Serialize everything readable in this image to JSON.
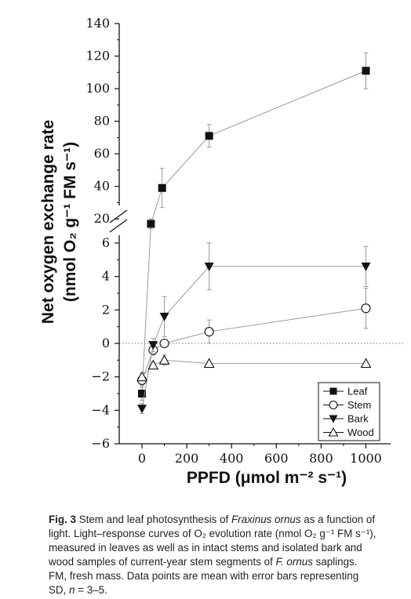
{
  "chart_data": {
    "type": "line",
    "xlabel": "PPFD (μmol m⁻² s⁻¹)",
    "ylabel_line1": "Net oxygen exchange rate",
    "ylabel_line2": "(nmol O₂ g⁻¹ FM s⁻¹)",
    "x_ticks": [
      0,
      200,
      400,
      600,
      800,
      1000
    ],
    "y_ticks_lower": [
      -6,
      -4,
      -2,
      0,
      2,
      4,
      6
    ],
    "y_ticks_upper": [
      20,
      40,
      60,
      80,
      100,
      120,
      140
    ],
    "ylim_lower": [
      -6,
      6
    ],
    "ylim_upper": [
      10,
      140
    ],
    "xlim": [
      -50,
      1050
    ],
    "axis_break": true,
    "zero_reference_line": "dotted",
    "legend_position": "bottom-right",
    "series": [
      {
        "name": "Leaf",
        "marker": "filled-square",
        "x": [
          0,
          40,
          90,
          300,
          1000
        ],
        "y": [
          -3.0,
          17,
          39,
          71,
          111
        ],
        "err": [
          0.4,
          3,
          12,
          7,
          11
        ]
      },
      {
        "name": "Stem",
        "marker": "open-circle",
        "x": [
          0,
          50,
          100,
          300,
          1000
        ],
        "y": [
          -2.2,
          -0.4,
          0.0,
          0.7,
          2.1
        ],
        "err": [
          0.3,
          0.3,
          0.2,
          0.7,
          1.2
        ]
      },
      {
        "name": "Bark",
        "marker": "filled-down-triangle",
        "x": [
          0,
          50,
          100,
          300,
          1000
        ],
        "y": [
          -3.9,
          -0.1,
          1.6,
          4.6,
          4.6
        ],
        "err": [
          0.3,
          0.4,
          1.2,
          1.4,
          1.2
        ]
      },
      {
        "name": "Wood",
        "marker": "open-up-triangle",
        "x": [
          0,
          50,
          100,
          300,
          1000
        ],
        "y": [
          -2.0,
          -1.3,
          -1.0,
          -1.2,
          -1.2
        ],
        "err": [
          0.2,
          0.2,
          0.3,
          0.1,
          0.1
        ]
      }
    ]
  },
  "caption": {
    "fig_label": "Fig. 3",
    "text_1": " Stem and leaf photosynthesis of ",
    "species": "Fraxinus ornus",
    "text_2": " as a function of light. Light–response curves of O₂ evolution rate (nmol O₂ g⁻¹ FM s⁻¹), measured in leaves as well as in intact stems and isolated bark and wood samples of current-year stem segments of ",
    "species_abbr": "F. ornus",
    "text_3": " saplings. FM, fresh mass. Data points are mean with error bars representing SD, ",
    "n_label": "n",
    "n_value": " = 3–5."
  }
}
